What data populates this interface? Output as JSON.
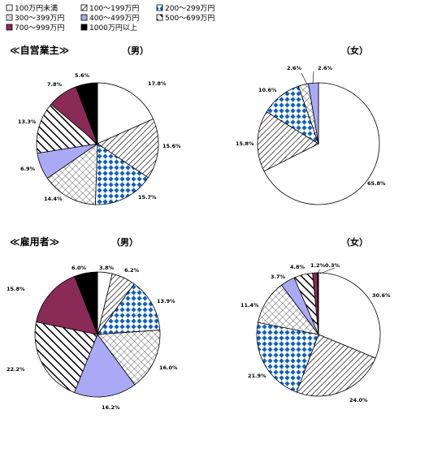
{
  "legend": {
    "items": [
      {
        "label": "100万円未満",
        "fill": "white"
      },
      {
        "label": "100～199万円",
        "fill": "diag"
      },
      {
        "label": "200～299万円",
        "fill": "blue-diamond"
      },
      {
        "label": "300～399万円",
        "fill": "crosshatch"
      },
      {
        "label": "400～499万円",
        "fill": "lavender"
      },
      {
        "label": "500～699万円",
        "fill": "bold-diag"
      },
      {
        "label": "700～999万円",
        "fill": "maroon"
      },
      {
        "label": "1000万円以上",
        "fill": "black"
      }
    ]
  },
  "colors": {
    "lavender": "#a9a9f5",
    "maroon": "#8a2a56",
    "blue_diamond": "#1060c0",
    "black": "#000000"
  },
  "sections": [
    {
      "title": "≪自営業主≫",
      "male_label": "（男）",
      "female_label": "（女）"
    },
    {
      "title": "≪雇用者≫",
      "male_label": "（男）",
      "female_label": "（女）"
    }
  ],
  "chart_data": [
    {
      "type": "pie",
      "series": "自営業主（男）",
      "categories": [
        "100万円未満",
        "100～199万円",
        "200～299万円",
        "300～399万円",
        "400～499万円",
        "500～699万円",
        "700～999万円",
        "1000万円以上"
      ],
      "values": [
        17.8,
        15.6,
        15.7,
        14.4,
        6.9,
        13.3,
        7.8,
        5.6
      ],
      "labels": [
        "17.8%",
        "15.6%",
        "15.7%",
        "14.4%",
        "6.9%",
        "13.3%",
        "7.8%",
        "5.6%"
      ]
    },
    {
      "type": "pie",
      "series": "自営業主（女）",
      "categories": [
        "100万円未満",
        "100～199万円",
        "200～299万円",
        "300～399万円",
        "400～499万円"
      ],
      "values": [
        65.8,
        15.8,
        10.6,
        2.6,
        2.6
      ],
      "labels": [
        "65.8%",
        "15.8%",
        "10.6%",
        "2.6%",
        "2.6%"
      ]
    },
    {
      "type": "pie",
      "series": "雇用者（男）",
      "categories": [
        "100万円未満",
        "100～199万円",
        "200～299万円",
        "300～399万円",
        "400～499万円",
        "500～699万円",
        "700～999万円",
        "1000万円以上"
      ],
      "values": [
        3.8,
        6.2,
        13.9,
        16.0,
        16.2,
        22.2,
        15.8,
        6.0
      ],
      "labels": [
        "3.8%",
        "6.2%",
        "13.9%",
        "16.0%",
        "16.2%",
        "22.2%",
        "15.8%",
        "6.0%"
      ]
    },
    {
      "type": "pie",
      "series": "雇用者（女）",
      "categories": [
        "100万円未満",
        "100～199万円",
        "200～299万円",
        "300～399万円",
        "400～499万円",
        "500～699万円",
        "700～999万円",
        "1000万円以上"
      ],
      "values": [
        30.6,
        24.0,
        21.9,
        11.4,
        3.7,
        4.8,
        1.2,
        0.3
      ],
      "labels": [
        "30.6%",
        "24.0%",
        "21.9%",
        "11.4%",
        "3.7%",
        "4.8%",
        "1.2%",
        "0.3%"
      ]
    }
  ]
}
